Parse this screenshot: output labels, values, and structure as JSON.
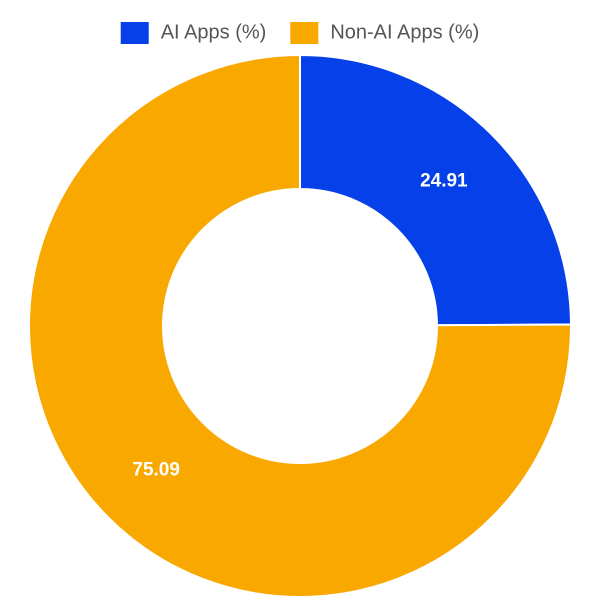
{
  "chart_data": {
    "type": "donut",
    "categories": [
      "AI Apps (%)",
      "Non-AI Apps (%)"
    ],
    "values": [
      24.91,
      75.09
    ],
    "colors": [
      "#0640e8",
      "#f9a800"
    ],
    "legend": "top"
  }
}
